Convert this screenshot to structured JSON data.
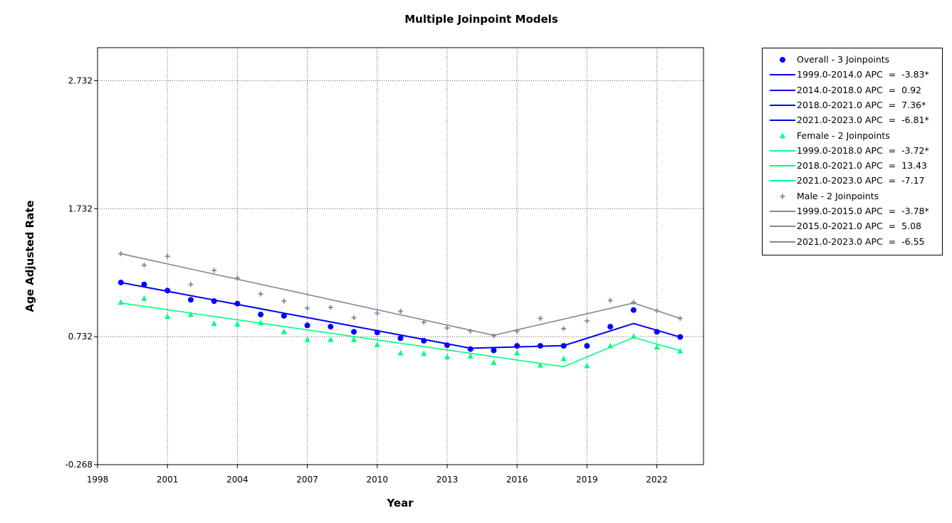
{
  "chart_data": {
    "type": "scatter",
    "title": "Multiple Joinpoint Models",
    "xlabel": "Year",
    "ylabel": "Age Adjusted Rate",
    "xlim": [
      1998,
      2024
    ],
    "ylim": [
      -0.268,
      2.99
    ],
    "x_ticks": [
      "1998",
      "2001",
      "2004",
      "2007",
      "2010",
      "2013",
      "2016",
      "2019",
      "2022"
    ],
    "y_ticks": [
      "-0.268",
      "0.732",
      "1.732",
      "2.732"
    ],
    "grid": true,
    "legend_position": "outside-right",
    "series": [
      {
        "name": "Overall - 3 Joinpoints",
        "color": "#0000ff",
        "marker": "circle",
        "x": [
          1999,
          2000,
          2001,
          2002,
          2003,
          2004,
          2005,
          2006,
          2007,
          2008,
          2009,
          2010,
          2011,
          2012,
          2013,
          2014,
          2015,
          2016,
          2017,
          2018,
          2019,
          2020,
          2021,
          2022,
          2023
        ],
        "y": [
          1.155,
          1.14,
          1.092,
          1.02,
          1.01,
          0.99,
          0.905,
          0.895,
          0.82,
          0.81,
          0.77,
          0.765,
          0.72,
          0.7,
          0.665,
          0.635,
          0.625,
          0.66,
          0.66,
          0.66,
          0.66,
          0.81,
          0.94,
          0.77,
          0.73
        ],
        "fit": {
          "x": [
            1999,
            2014,
            2018,
            2021,
            2023
          ],
          "y": [
            1.155,
            0.642,
            0.662,
            0.835,
            0.729
          ]
        },
        "segments": [
          "1999.0-2014.0 APC  =  -3.83*",
          "2014.0-2018.0 APC  =  0.92",
          "2018.0-2021.0 APC  =  7.36*",
          "2021.0-2023.0 APC  =  -6.81*"
        ]
      },
      {
        "name": "Female - 2 Joinpoints",
        "color": "#00ff80",
        "marker": "triangle",
        "x": [
          1999,
          2000,
          2001,
          2002,
          2003,
          2004,
          2005,
          2006,
          2007,
          2008,
          2009,
          2010,
          2011,
          2012,
          2013,
          2014,
          2015,
          2016,
          2017,
          2018,
          2019,
          2020,
          2021,
          2022,
          2023
        ],
        "y": [
          1.0,
          1.03,
          0.89,
          0.905,
          0.835,
          0.83,
          0.84,
          0.77,
          0.71,
          0.71,
          0.71,
          0.67,
          0.605,
          0.6,
          0.575,
          0.58,
          0.53,
          0.605,
          0.51,
          0.56,
          0.505,
          0.66,
          0.735,
          0.65,
          0.62
        ],
        "fit": {
          "x": [
            1999,
            2018,
            2021,
            2023
          ],
          "y": [
            0.995,
            0.497,
            0.725,
            0.623
          ]
        },
        "segments": [
          "1999.0-2018.0 APC  =  -3.72*",
          "2018.0-2021.0 APC  =  13.43",
          "2021.0-2023.0 APC  =  -7.17"
        ]
      },
      {
        "name": "Male - 2 Joinpoints",
        "color": "#7b8b9b",
        "marker": "plus",
        "x": [
          1999,
          2000,
          2001,
          2002,
          2003,
          2004,
          2005,
          2006,
          2007,
          2008,
          2009,
          2010,
          2011,
          2012,
          2013,
          2014,
          2015,
          2016,
          2017,
          2018,
          2019,
          2020,
          2021,
          2022,
          2023
        ],
        "y": [
          1.38,
          1.29,
          1.36,
          1.14,
          1.25,
          1.19,
          1.065,
          1.01,
          0.955,
          0.96,
          0.88,
          0.915,
          0.93,
          0.845,
          0.8,
          0.775,
          0.74,
          0.775,
          0.875,
          0.795,
          0.855,
          1.015,
          1.0,
          0.935,
          0.875
        ],
        "fit": {
          "x": [
            1999,
            2015,
            2021,
            2023
          ],
          "y": [
            1.38,
            0.743,
            0.995,
            0.875
          ]
        },
        "segments": [
          "1999.0-2015.0 APC  =  -3.78*",
          "2015.0-2021.0 APC  =  5.08",
          "2021.0-2023.0 APC  =  -6.55"
        ]
      }
    ]
  }
}
